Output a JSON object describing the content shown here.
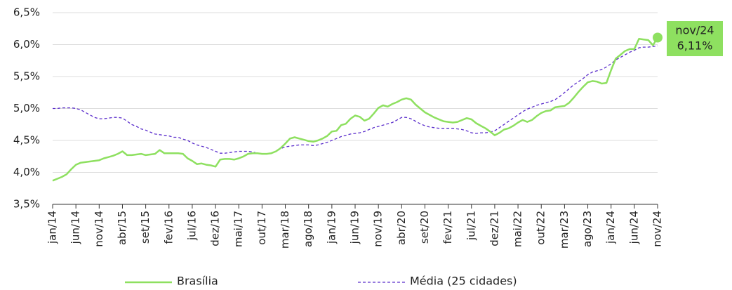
{
  "chart_data": {
    "type": "line",
    "categories": [
      "jan/14",
      null,
      null,
      null,
      null,
      "jun/14",
      null,
      null,
      null,
      null,
      "nov/14",
      null,
      null,
      null,
      null,
      "abr/15",
      null,
      null,
      null,
      null,
      "set/15",
      null,
      null,
      null,
      null,
      "fev/16",
      null,
      null,
      null,
      null,
      "jul/16",
      null,
      null,
      null,
      null,
      "dez/16",
      null,
      null,
      null,
      null,
      "mai/17",
      null,
      null,
      null,
      null,
      "out/17",
      null,
      null,
      null,
      null,
      "mar/18",
      null,
      null,
      null,
      null,
      "ago/18",
      null,
      null,
      null,
      null,
      "jan/19",
      null,
      null,
      null,
      null,
      "jun/19",
      null,
      null,
      null,
      null,
      "nov/19",
      null,
      null,
      null,
      null,
      "abr/20",
      null,
      null,
      null,
      null,
      "set/20",
      null,
      null,
      null,
      null,
      "fev/21",
      null,
      null,
      null,
      null,
      "jul/21",
      null,
      null,
      null,
      null,
      "dez/21",
      null,
      null,
      null,
      null,
      "mai/22",
      null,
      null,
      null,
      null,
      "out/22",
      null,
      null,
      null,
      null,
      "mar/23",
      null,
      null,
      null,
      null,
      "ago/23",
      null,
      null,
      null,
      null,
      "jan/24",
      null,
      null,
      null,
      null,
      "jun/24",
      null,
      null,
      null,
      null,
      "nov/24"
    ],
    "series": [
      {
        "name": "Brasília",
        "color": "#8ee060",
        "style": "solid",
        "values": [
          3.87,
          3.9,
          3.93,
          3.97,
          4.05,
          4.12,
          4.15,
          4.16,
          4.17,
          4.18,
          4.19,
          4.22,
          4.24,
          4.26,
          4.29,
          4.33,
          4.27,
          4.27,
          4.28,
          4.29,
          4.27,
          4.28,
          4.29,
          4.35,
          4.3,
          4.3,
          4.3,
          4.3,
          4.29,
          4.22,
          4.18,
          4.13,
          4.14,
          4.12,
          4.11,
          4.09,
          4.2,
          4.21,
          4.21,
          4.2,
          4.22,
          4.25,
          4.29,
          4.3,
          4.3,
          4.29,
          4.29,
          4.3,
          4.33,
          4.38,
          4.45,
          4.53,
          4.55,
          4.53,
          4.51,
          4.49,
          4.48,
          4.5,
          4.53,
          4.57,
          4.64,
          4.65,
          4.74,
          4.76,
          4.84,
          4.89,
          4.87,
          4.81,
          4.84,
          4.92,
          5.01,
          5.05,
          5.03,
          5.07,
          5.1,
          5.14,
          5.16,
          5.14,
          5.06,
          5.0,
          4.94,
          4.9,
          4.86,
          4.83,
          4.8,
          4.79,
          4.78,
          4.79,
          4.82,
          4.85,
          4.83,
          4.77,
          4.73,
          4.69,
          4.64,
          4.58,
          4.62,
          4.67,
          4.69,
          4.73,
          4.78,
          4.82,
          4.79,
          4.82,
          4.88,
          4.93,
          4.96,
          4.97,
          5.02,
          5.03,
          5.04,
          5.09,
          5.17,
          5.26,
          5.34,
          5.41,
          5.43,
          5.42,
          5.39,
          5.4,
          5.6,
          5.78,
          5.84,
          5.9,
          5.93,
          5.93,
          6.09,
          6.08,
          6.07,
          5.99,
          6.11
        ]
      },
      {
        "name": "Média (25 cidades)",
        "color": "#5b2ecc",
        "style": "dashed",
        "values": [
          5.0,
          5.0,
          5.01,
          5.01,
          5.01,
          5.0,
          4.98,
          4.94,
          4.9,
          4.86,
          4.84,
          4.84,
          4.85,
          4.86,
          4.86,
          4.85,
          4.8,
          4.75,
          4.72,
          4.68,
          4.66,
          4.63,
          4.6,
          4.59,
          4.58,
          4.57,
          4.55,
          4.55,
          4.52,
          4.5,
          4.46,
          4.43,
          4.41,
          4.39,
          4.36,
          4.33,
          4.3,
          4.3,
          4.31,
          4.32,
          4.33,
          4.33,
          4.33,
          4.32,
          4.3,
          4.29,
          4.29,
          4.3,
          4.33,
          4.37,
          4.4,
          4.41,
          4.42,
          4.43,
          4.43,
          4.43,
          4.42,
          4.43,
          4.45,
          4.47,
          4.5,
          4.53,
          4.56,
          4.58,
          4.6,
          4.61,
          4.62,
          4.64,
          4.67,
          4.7,
          4.72,
          4.74,
          4.76,
          4.78,
          4.82,
          4.86,
          4.86,
          4.84,
          4.8,
          4.76,
          4.73,
          4.71,
          4.7,
          4.69,
          4.69,
          4.69,
          4.69,
          4.68,
          4.67,
          4.65,
          4.62,
          4.61,
          4.62,
          4.62,
          4.63,
          4.65,
          4.7,
          4.75,
          4.8,
          4.85,
          4.9,
          4.95,
          4.99,
          5.02,
          5.05,
          5.07,
          5.09,
          5.11,
          5.14,
          5.19,
          5.25,
          5.31,
          5.37,
          5.42,
          5.47,
          5.53,
          5.57,
          5.59,
          5.61,
          5.65,
          5.7,
          5.76,
          5.8,
          5.84,
          5.88,
          5.91,
          5.95,
          5.96,
          5.96,
          5.97,
          5.98
        ]
      }
    ],
    "ylim": [
      3.5,
      6.5
    ],
    "yticks": [
      {
        "value": 3.5,
        "label": "3,5%"
      },
      {
        "value": 4.0,
        "label": "4,0%"
      },
      {
        "value": 4.5,
        "label": "4,5%"
      },
      {
        "value": 5.0,
        "label": "5,0%"
      },
      {
        "value": 5.5,
        "label": "5,5%"
      },
      {
        "value": 6.0,
        "label": "6,0%"
      },
      {
        "value": 6.5,
        "label": "6,5%"
      }
    ],
    "grid": true,
    "annotation": {
      "lines": [
        "nov/24",
        "6,11%"
      ],
      "color": "#8ee060"
    }
  }
}
